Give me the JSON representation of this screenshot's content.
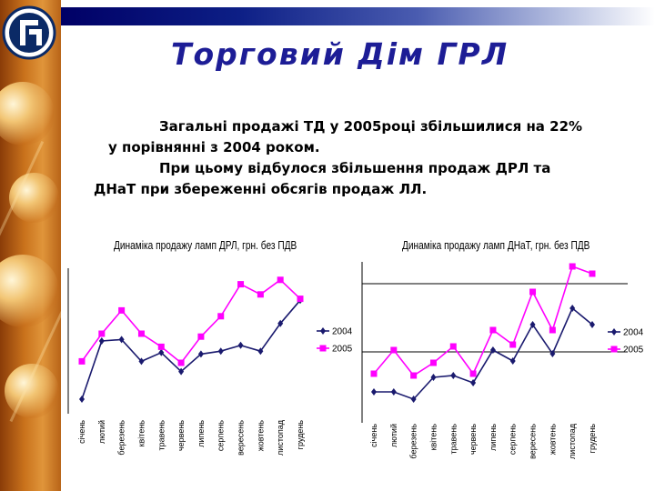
{
  "slide": {
    "title": "Торговий  Дім ГРЛ",
    "paragraphs": [
      "Загальні продажі ТД у 2005році збільшилися на 22%",
      "у порівнянні з 2004 роком.",
      "При цьому відбулося збільшення продаж ДРЛ та",
      "ДНаТ при збереженні обсягів продаж ЛЛ."
    ]
  },
  "colors": {
    "series2004": "#1a1a6e",
    "series2005": "#ff00ff",
    "title": "#1d1d96",
    "topbar": "#0d1f86"
  },
  "chart_data": [
    {
      "type": "line",
      "title": "Динаміка продажу ламп ДРЛ, грн. без ПДВ",
      "categories": [
        "січень",
        "лютий",
        "березень",
        "квітень",
        "травень",
        "червень",
        "липень",
        "серпень",
        "вересень",
        "жовтень",
        "листопад",
        "грудень"
      ],
      "series": [
        {
          "name": "2004",
          "values": [
            10,
            50,
            51,
            36,
            42,
            29,
            41,
            43,
            47,
            43,
            62,
            78
          ]
        },
        {
          "name": "2005",
          "values": [
            36,
            55,
            71,
            55,
            46,
            35,
            53,
            67,
            89,
            82,
            92,
            79
          ]
        }
      ],
      "ylim": [
        0,
        100
      ],
      "grid": false,
      "legend": "right"
    },
    {
      "type": "line",
      "title": "Динаміка продажу ламп ДНаТ, грн. без ПДВ",
      "categories": [
        "січень",
        "лютий",
        "березень",
        "квітень",
        "травень",
        "червень",
        "липень",
        "серпень",
        "вересень",
        "жовтень",
        "листопад",
        "грудень"
      ],
      "series": [
        {
          "name": "2004",
          "values": [
            17,
            17,
            13,
            25,
            26,
            22,
            40,
            34,
            54,
            38,
            63,
            54
          ]
        },
        {
          "name": "2005",
          "values": [
            27,
            40,
            26,
            33,
            42,
            27,
            51,
            43,
            72,
            51,
            86,
            82
          ]
        }
      ],
      "ylim": [
        0,
        100
      ],
      "grid": true,
      "legend": "right"
    }
  ]
}
